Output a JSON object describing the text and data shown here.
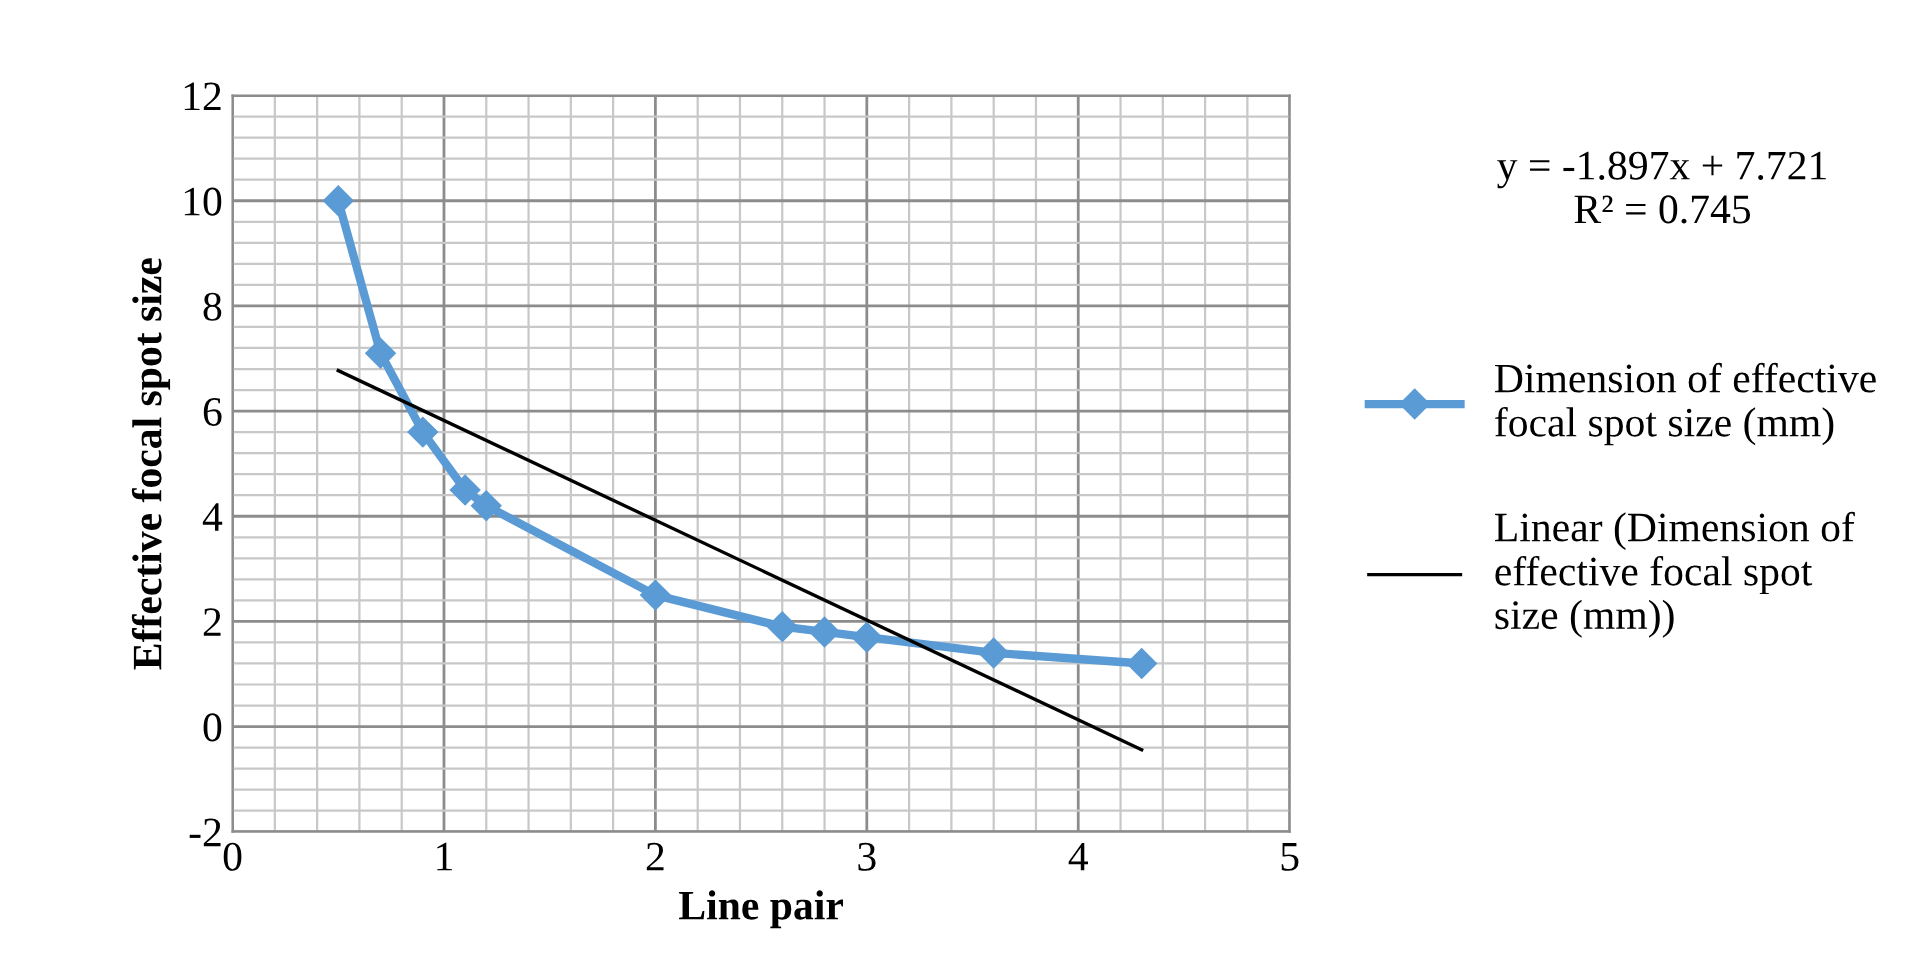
{
  "chart_data": {
    "type": "line",
    "xlabel": "Line pair",
    "ylabel": "Effective focal spot size",
    "x": [
      0.5,
      0.7,
      0.9,
      1.1,
      1.2,
      2,
      2.6,
      2.8,
      3,
      3.6,
      4.3
    ],
    "series": [
      {
        "name": "Dimension of effective focal spot size (mm)",
        "color": "#5b9bd5",
        "marker": "diamond",
        "values": [
          10,
          7.1,
          5.6,
          4.5,
          4.2,
          2.5,
          1.9,
          1.8,
          1.7,
          1.4,
          1.2
        ]
      },
      {
        "name": "Linear (Dimension of effective focal spot size (mm))",
        "type": "line",
        "color": "#000000",
        "marker": "none",
        "x": [
          0.5,
          4.3
        ],
        "values": [
          6.77,
          -0.44
        ]
      }
    ],
    "annotations": [
      "y = -1.897x + 7.721\nR² = 0.745"
    ],
    "xlim": [
      0,
      5
    ],
    "xticks": [
      0,
      1,
      2,
      3,
      4,
      5
    ],
    "ylim": [
      -2,
      12
    ],
    "yticks": [
      -2,
      0,
      2,
      4,
      6,
      8,
      10,
      12
    ],
    "grid": true,
    "legend": "right"
  }
}
